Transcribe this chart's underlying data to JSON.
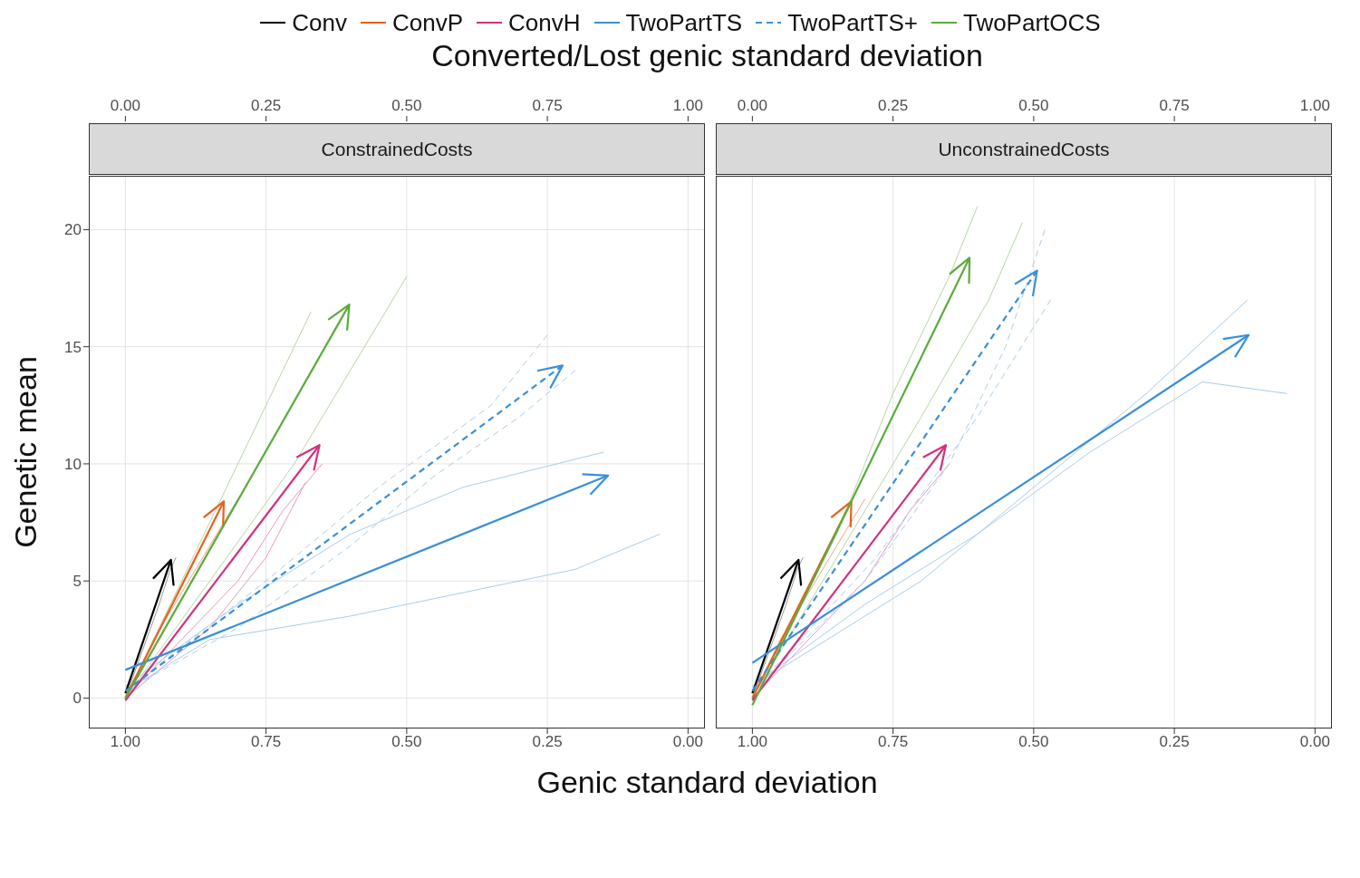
{
  "chart_data": [
    {
      "type": "line",
      "title": "ConstrainedCosts",
      "xlabel": "Genic standard deviation",
      "x2label": "Converted/Lost genic standard deviation",
      "ylabel": "Genetic mean",
      "xlim": [
        1.065,
        -0.03
      ],
      "xticks": [
        {
          "value": 1,
          "label": "1.00"
        },
        {
          "value": 0.75,
          "label": "0.75"
        },
        {
          "value": 0.5,
          "label": "0.50"
        },
        {
          "value": 0.25,
          "label": "0.25"
        },
        {
          "value": 0,
          "label": "0.00"
        }
      ],
      "x2lim": [
        -0.065,
        1.03
      ],
      "x2ticks": [
        {
          "value": 0,
          "label": "0.00"
        },
        {
          "value": 0.25,
          "label": "0.25"
        },
        {
          "value": 0.5,
          "label": "0.50"
        },
        {
          "value": 0.75,
          "label": "0.75"
        },
        {
          "value": 1,
          "label": "1.00"
        }
      ],
      "ylim": [
        -1.3,
        22.3
      ],
      "yticks": [
        0,
        5,
        10,
        15,
        20
      ],
      "grid": true,
      "legend": "top",
      "marker": "none",
      "series": [
        {
          "color": "#999999",
          "x": [
            1,
            0.97,
            0.94,
            0.92,
            0.91
          ],
          "values": [
            0,
            2,
            4,
            5.5,
            6
          ]
        },
        {
          "color": "#f2a77d",
          "x": [
            1,
            0.95,
            0.9,
            0.85,
            0.8
          ],
          "values": [
            0,
            2.5,
            4.5,
            6.5,
            8.5
          ]
        },
        {
          "color": "#e69ac0",
          "x": [
            1,
            0.9,
            0.8,
            0.72,
            0.65
          ],
          "values": [
            0,
            2.5,
            5,
            8,
            10
          ]
        },
        {
          "color": "#e69ac0",
          "x": [
            1,
            0.85,
            0.75,
            0.68
          ],
          "values": [
            0,
            3,
            6,
            9.2
          ]
        },
        {
          "color": "#a9cdeb",
          "x": [
            1,
            0.85,
            0.6,
            0.4,
            0.2,
            0.05
          ],
          "values": [
            0.3,
            2.5,
            3.5,
            4.5,
            5.5,
            7
          ]
        },
        {
          "color": "#a9cdeb",
          "x": [
            1,
            0.8,
            0.6,
            0.4,
            0.15
          ],
          "values": [
            0.5,
            4,
            7,
            9,
            10.5
          ]
        },
        {
          "color": "#a9cdeb",
          "line_style": "dashed",
          "x": [
            1,
            0.8,
            0.6,
            0.45,
            0.3,
            0.2
          ],
          "values": [
            0.3,
            3,
            6.5,
            9.5,
            12,
            14
          ]
        },
        {
          "color": "#a9cdeb",
          "line_style": "dashed",
          "x": [
            1,
            0.75,
            0.55,
            0.35,
            0.25
          ],
          "values": [
            0.3,
            5,
            9,
            12.5,
            15.5
          ]
        },
        {
          "color": "#b5d6a5",
          "x": [
            1,
            0.9,
            0.8,
            0.72,
            0.67
          ],
          "values": [
            0,
            5,
            10,
            14,
            16.5
          ]
        },
        {
          "color": "#b5d6a5",
          "x": [
            1,
            0.85,
            0.7,
            0.6,
            0.5
          ],
          "values": [
            0,
            5,
            10,
            14,
            18
          ]
        },
        {
          "name": "Conv",
          "color": "#000000",
          "x": [
            1,
            0.919
          ],
          "values": [
            0.2,
            5.9
          ]
        },
        {
          "name": "ConvP",
          "color": "#e8601c",
          "x": [
            1,
            0.825
          ],
          "values": [
            0,
            8.4
          ]
        },
        {
          "name": "ConvH",
          "color": "#d0317f",
          "x": [
            1,
            0.655
          ],
          "values": [
            -0.1,
            10.8
          ]
        },
        {
          "name": "TwoPartTS",
          "color": "#3a8fd6",
          "x": [
            1,
            0.142
          ],
          "values": [
            1.2,
            9.5
          ]
        },
        {
          "name": "TwoPartTS+",
          "color": "#3a8fd6",
          "line_style": "dashed",
          "x": [
            1,
            0.223
          ],
          "values": [
            0.3,
            14.2
          ]
        },
        {
          "name": "TwoPartOCS",
          "color": "#5aab3c",
          "x": [
            1,
            0.602
          ],
          "values": [
            0,
            16.8
          ]
        }
      ]
    },
    {
      "type": "line",
      "title": "UnconstrainedCosts",
      "xlim": [
        1.065,
        -0.03
      ],
      "xticks": [
        {
          "value": 1,
          "label": "1.00"
        },
        {
          "value": 0.75,
          "label": "0.75"
        },
        {
          "value": 0.5,
          "label": "0.50"
        },
        {
          "value": 0.25,
          "label": "0.25"
        },
        {
          "value": 0,
          "label": "0.00"
        }
      ],
      "x2lim": [
        -0.065,
        1.03
      ],
      "x2ticks": [
        {
          "value": 0,
          "label": "0.00"
        },
        {
          "value": 0.25,
          "label": "0.25"
        },
        {
          "value": 0.5,
          "label": "0.50"
        },
        {
          "value": 0.75,
          "label": "0.75"
        },
        {
          "value": 1,
          "label": "1.00"
        }
      ],
      "ylim": [
        -1.3,
        22.3
      ],
      "yticks": [
        0,
        5,
        10,
        15,
        20
      ],
      "tick_labels": "x",
      "grid": true,
      "legend": "top",
      "marker": "none",
      "series": [
        {
          "color": "#999999",
          "x": [
            1,
            0.97,
            0.94,
            0.92,
            0.91
          ],
          "values": [
            0,
            2,
            4,
            5.5,
            6
          ]
        },
        {
          "color": "#f2a77d",
          "x": [
            1,
            0.95,
            0.9,
            0.85,
            0.8
          ],
          "values": [
            0,
            2.5,
            4.5,
            6.5,
            8.5
          ]
        },
        {
          "color": "#e69ac0",
          "x": [
            1,
            0.9,
            0.8,
            0.72,
            0.65
          ],
          "values": [
            0,
            2.5,
            5,
            8,
            10
          ]
        },
        {
          "color": "#a9cdeb",
          "x": [
            1,
            0.8,
            0.6,
            0.4,
            0.2,
            0.05
          ],
          "values": [
            0.5,
            4,
            7,
            10.5,
            13.5,
            13
          ]
        },
        {
          "color": "#a9cdeb",
          "x": [
            1,
            0.7,
            0.5,
            0.3,
            0.12
          ],
          "values": [
            0.5,
            5,
            9,
            13,
            17
          ]
        },
        {
          "color": "#a9cdeb",
          "line_style": "dashed",
          "x": [
            1,
            0.8,
            0.65,
            0.55,
            0.48
          ],
          "values": [
            0.3,
            5,
            10,
            15,
            20
          ]
        },
        {
          "color": "#a9cdeb",
          "line_style": "dashed",
          "x": [
            1,
            0.78,
            0.6,
            0.47
          ],
          "values": [
            0.3,
            6,
            12,
            17
          ]
        },
        {
          "color": "#b5d6a5",
          "x": [
            1,
            0.85,
            0.75,
            0.65,
            0.6
          ],
          "values": [
            0,
            7,
            13,
            18,
            21
          ]
        },
        {
          "color": "#b5d6a5",
          "x": [
            1,
            0.85,
            0.7,
            0.58,
            0.52
          ],
          "values": [
            0,
            6,
            12,
            17,
            20.3
          ]
        },
        {
          "name": "Conv",
          "color": "#000000",
          "x": [
            1,
            0.918
          ],
          "values": [
            0.2,
            5.9
          ]
        },
        {
          "name": "ConvP",
          "color": "#e8601c",
          "x": [
            1,
            0.824
          ],
          "values": [
            0,
            8.4
          ]
        },
        {
          "name": "ConvH",
          "color": "#d0317f",
          "x": [
            1,
            0.656
          ],
          "values": [
            -0.1,
            10.8
          ]
        },
        {
          "name": "TwoPartTS",
          "color": "#3a8fd6",
          "x": [
            1,
            0.118
          ],
          "values": [
            1.5,
            15.5
          ]
        },
        {
          "name": "TwoPartTS+",
          "color": "#3a8fd6",
          "line_style": "dashed",
          "x": [
            1,
            0.494
          ],
          "values": [
            0.3,
            18.25
          ]
        },
        {
          "name": "TwoPartOCS",
          "color": "#5aab3c",
          "x": [
            1,
            0.614
          ],
          "values": [
            -0.3,
            18.8
          ]
        }
      ]
    }
  ]
}
